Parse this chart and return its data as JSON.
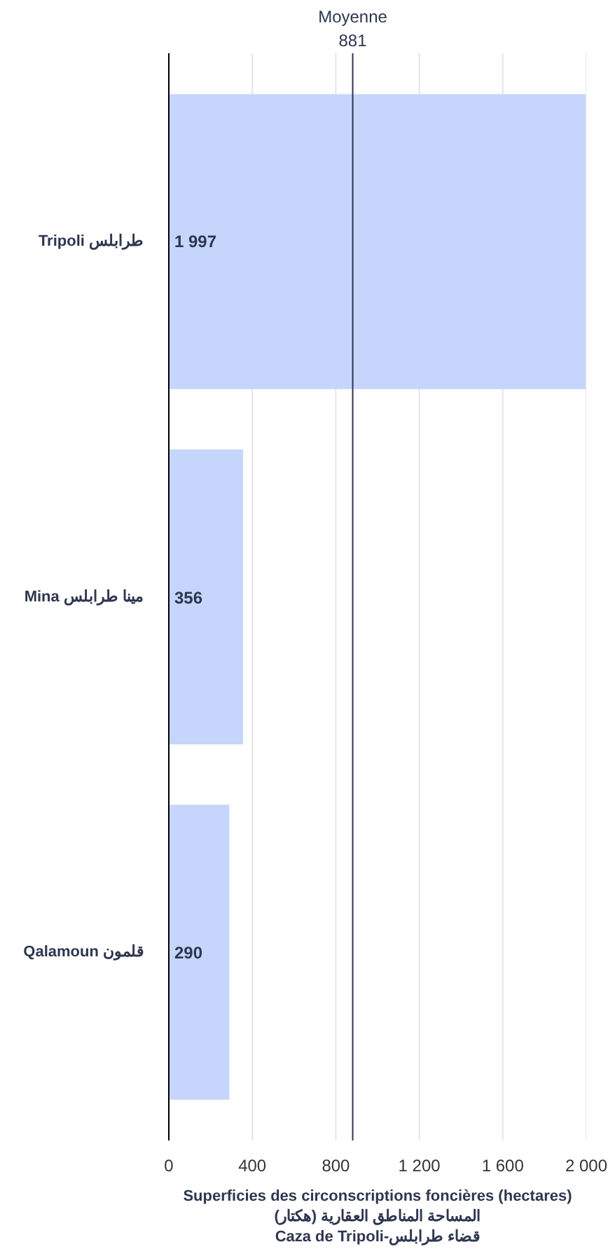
{
  "chart_data": {
    "type": "bar",
    "orientation": "horizontal",
    "categories": [
      "Tripoli طرابلس",
      "Mina مينا طرابلس",
      "Qalamoun قلمون"
    ],
    "values": [
      1997,
      356,
      290
    ],
    "value_labels": [
      "1 997",
      "356",
      "290"
    ],
    "color": "#c5d5fb",
    "xlabel": "Superficies des circonscriptions foncières (hectares)\nالمساحة المناطق العقارية (هكتار)\nCaza de Tripoli-قضاء طرابلس",
    "xlim": [
      0,
      2000
    ],
    "xticks": [
      0,
      400,
      800,
      {
        "value": 1200,
        "label": "1 200"
      },
      {
        "value": 1600,
        "label": "1 600"
      },
      {
        "value": 2000,
        "label": "2 000"
      }
    ],
    "ref_lines": [
      {
        "axis": "x",
        "value": 881,
        "label": "Moyenne\n881",
        "color": "#2e3650"
      }
    ],
    "grid": "x"
  }
}
